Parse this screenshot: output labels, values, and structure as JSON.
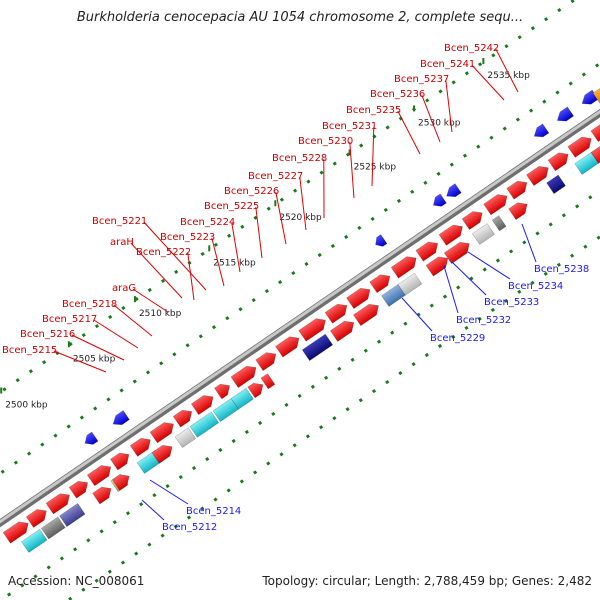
{
  "title": "Burkholderia cenocepacia AU 1054 chromosome 2, complete sequ...",
  "footer": {
    "accession": "Accession: NC_008061",
    "topology": "Topology: circular; Length: 2,788,459 bp; Genes: 2,482"
  },
  "colors": {
    "backbone": "#999999",
    "forward_gene": "#ff0000",
    "reverse_gene": "#1a1aff",
    "forward_label": "#cc0000",
    "reverse_label": "#1a1aff",
    "tick": "#1a7a1a",
    "scale_label": "#222222"
  },
  "scale_ticks": [
    "2500 kbp",
    "2505 kbp",
    "2510 kbp",
    "2515 kbp",
    "2520 kbp",
    "2525 kbp",
    "2530 kbp",
    "2535 kbp"
  ],
  "forward_labels": [
    "Bcen_5215",
    "Bcen_5216",
    "Bcen_5217",
    "Bcen_5218",
    "araG",
    "Bcen_5222",
    "araH",
    "Bcen_5221",
    "Bcen_5223",
    "Bcen_5224",
    "Bcen_5225",
    "Bcen_5226",
    "Bcen_5227",
    "Bcen_5228",
    "Bcen_5230",
    "Bcen_5231",
    "Bcen_5235",
    "Bcen_5236",
    "Bcen_5237",
    "Bcen_5241",
    "Bcen_5242"
  ],
  "reverse_labels": [
    "Bcen_5212",
    "Bcen_5214",
    "Bcen_5229",
    "Bcen_5232",
    "Bcen_5233",
    "Bcen_5234",
    "Bcen_5238"
  ]
}
